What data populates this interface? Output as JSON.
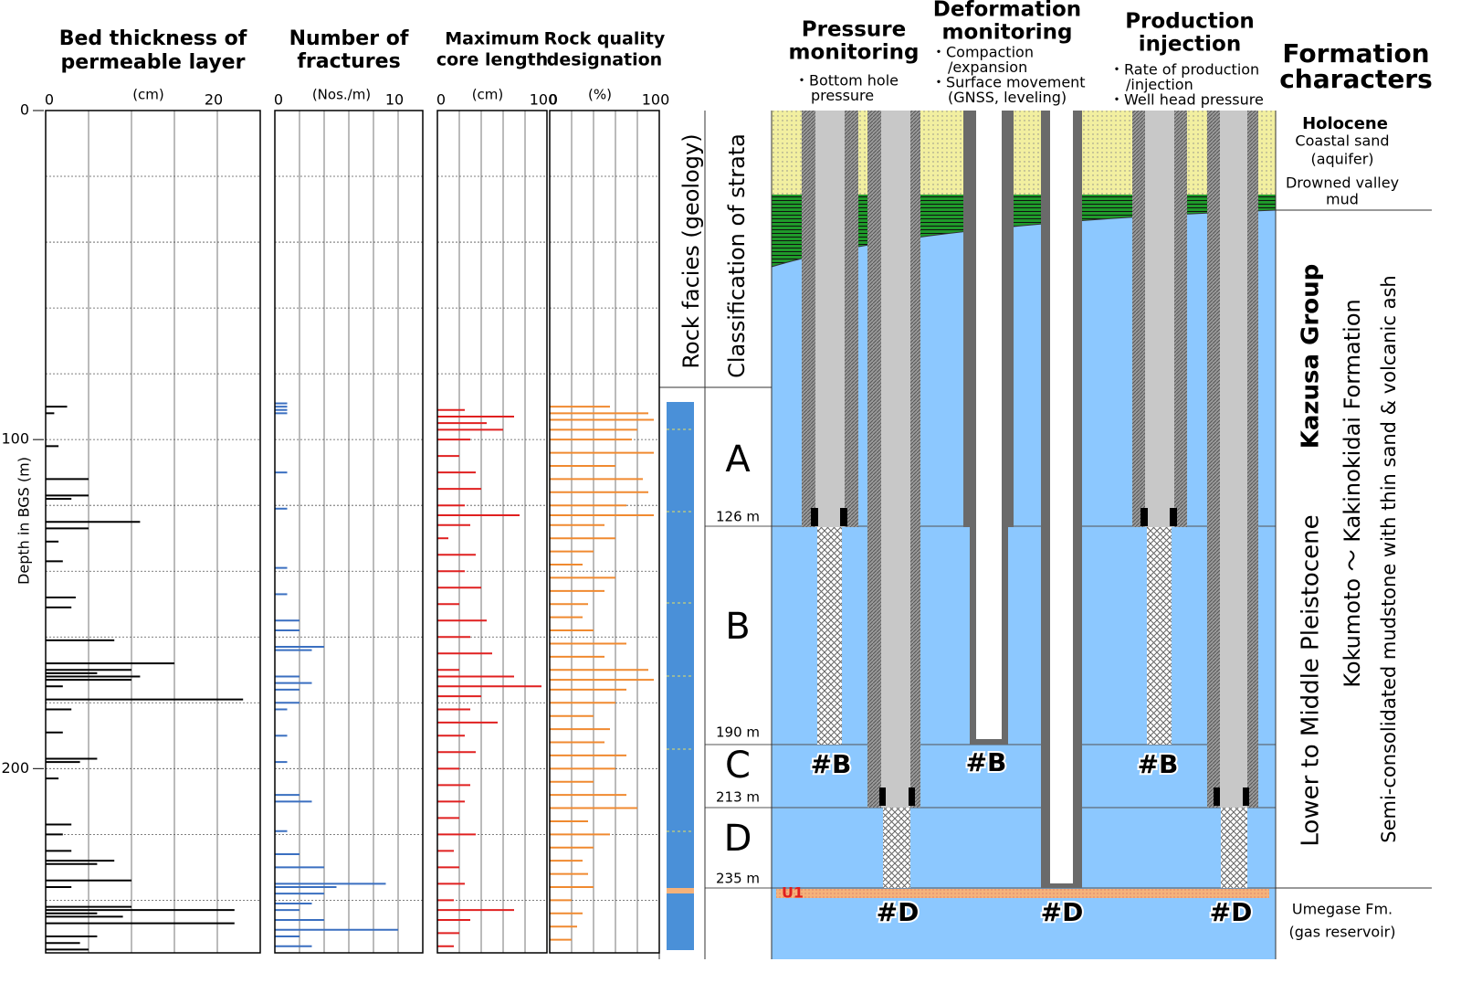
{
  "axis": {
    "label": "Depth in BGS (m)",
    "ylim": [
      0,
      256
    ],
    "yticks": [
      0,
      100,
      200
    ],
    "ygrid": [
      20,
      40,
      60,
      80,
      100,
      120,
      140,
      160,
      180,
      200,
      220,
      240
    ]
  },
  "panels": [
    {
      "title": [
        "Bed thickness of",
        "permeable layer"
      ],
      "unit": "(cm)",
      "xlim": [
        0,
        25
      ],
      "xticks": [
        0,
        20
      ],
      "xgrid": [
        5,
        10,
        15,
        20
      ],
      "color": "#000000",
      "depths": [
        90,
        92,
        102,
        112,
        117,
        118,
        125,
        127,
        131,
        137,
        148,
        151,
        161,
        168,
        170,
        171,
        172,
        173,
        175,
        179,
        182,
        189,
        197,
        198,
        203,
        217,
        220,
        225,
        228,
        229,
        234,
        236,
        242,
        243,
        244,
        245,
        247,
        251,
        253,
        255
      ],
      "values": [
        2.5,
        1,
        1.5,
        5,
        5,
        3,
        11,
        5,
        1.5,
        2,
        3.5,
        3,
        8,
        15,
        10,
        6,
        11,
        10,
        2,
        23,
        3,
        2,
        6,
        4,
        1.5,
        3,
        2,
        3,
        8,
        6,
        10,
        3,
        10,
        22,
        6,
        9,
        22,
        6,
        4,
        5
      ]
    },
    {
      "title": [
        "Number of",
        "fractures"
      ],
      "unit": "(Nos./m)",
      "xlim": [
        0,
        12
      ],
      "xticks": [
        0,
        10
      ],
      "xgrid": [
        2,
        4,
        6,
        8,
        10
      ],
      "color": "#3a6fc0",
      "depths": [
        89,
        90,
        91,
        92,
        110,
        121,
        139,
        147,
        155,
        158,
        163,
        164,
        172,
        174,
        176,
        180,
        182,
        190,
        198,
        208,
        210,
        219,
        226,
        230,
        235,
        236,
        238,
        241,
        243,
        246,
        249,
        251,
        254
      ],
      "values": [
        1,
        1,
        1,
        1,
        1,
        1,
        1,
        1,
        2,
        2,
        4,
        3,
        2,
        3,
        2,
        2,
        1,
        1,
        1,
        2,
        3,
        1,
        2,
        4,
        9,
        5,
        4,
        3,
        2,
        4,
        10,
        2,
        3
      ]
    },
    {
      "title": [
        "Maximum",
        "core length"
      ],
      "unit": "(cm)",
      "xlim": [
        0,
        100
      ],
      "xticks": [
        0,
        100
      ],
      "xgrid": [
        20,
        40,
        60,
        80
      ],
      "color": "#e02020",
      "depths": [
        91,
        93,
        95,
        97,
        100,
        105,
        110,
        115,
        120,
        123,
        126,
        130,
        135,
        140,
        145,
        150,
        155,
        160,
        165,
        170,
        172,
        175,
        178,
        182,
        186,
        190,
        195,
        200,
        205,
        210,
        215,
        220,
        225,
        230,
        235,
        240,
        243,
        246,
        250,
        254
      ],
      "values": [
        25,
        70,
        45,
        60,
        30,
        20,
        35,
        40,
        25,
        75,
        30,
        10,
        35,
        25,
        40,
        20,
        45,
        30,
        50,
        20,
        70,
        95,
        40,
        30,
        55,
        25,
        35,
        20,
        30,
        25,
        20,
        35,
        15,
        20,
        25,
        15,
        70,
        30,
        20,
        15
      ]
    },
    {
      "title": [
        "Rock quality",
        "designation"
      ],
      "unit": "(%)",
      "xlim": [
        0,
        100
      ],
      "xticks": [
        0,
        100
      ],
      "xgrid": [
        20,
        40,
        60,
        80
      ],
      "color": "#f08a30",
      "depths": [
        90,
        92,
        94,
        97,
        100,
        104,
        108,
        112,
        116,
        120,
        123,
        126,
        130,
        134,
        138,
        142,
        146,
        150,
        154,
        158,
        162,
        166,
        170,
        173,
        176,
        180,
        184,
        188,
        192,
        196,
        200,
        204,
        208,
        212,
        216,
        220,
        224,
        228,
        232,
        236,
        240,
        244,
        248,
        252
      ],
      "values": [
        55,
        90,
        95,
        80,
        75,
        95,
        60,
        85,
        90,
        70,
        95,
        50,
        60,
        40,
        30,
        60,
        50,
        35,
        30,
        40,
        70,
        50,
        90,
        95,
        70,
        60,
        40,
        55,
        50,
        70,
        60,
        40,
        70,
        80,
        35,
        55,
        40,
        30,
        35,
        40,
        20,
        30,
        25,
        20
      ]
    }
  ],
  "columns": {
    "facies": "Rock facies (geology)",
    "strata": "Classification of strata",
    "zones": [
      "A",
      "B",
      "C",
      "D"
    ],
    "boundaries": [
      "126 m",
      "190 m",
      "213 m",
      "235 m"
    ]
  },
  "monitoring": [
    {
      "title": [
        "Pressure",
        "monitoring"
      ],
      "notes": [
        "・Bottom hole",
        "pressure"
      ]
    },
    {
      "title": [
        "Deformation",
        "monitoring"
      ],
      "notes": [
        "・Compaction",
        "/expansion",
        "・Surface movement",
        "(GNSS, leveling)"
      ]
    },
    {
      "title": [
        "Production",
        "injection"
      ],
      "notes": [
        "・Rate of production",
        "/injection",
        "・Well head pressure"
      ]
    }
  ],
  "wells": {
    "labels": [
      "#B",
      "#D",
      "#B",
      "#D",
      "#B",
      "#D"
    ],
    "marker": "U1"
  },
  "formation": {
    "title": [
      "Formation",
      "characters"
    ],
    "holocene": "Holocene",
    "holocene_notes": [
      "Coastal sand",
      "(aquifer)",
      "Drowned valley",
      "mud"
    ],
    "group": "Kazusa Group",
    "age": "Lower to Middle Pleistocene",
    "formation": "Kokumoto ～ Kakinokidai Formation",
    "lithology": "Semi-consolidated mudstone with thin sand & volcanic ash",
    "reservoir": [
      "Umegase Fm.",
      "(gas reservoir)"
    ]
  }
}
